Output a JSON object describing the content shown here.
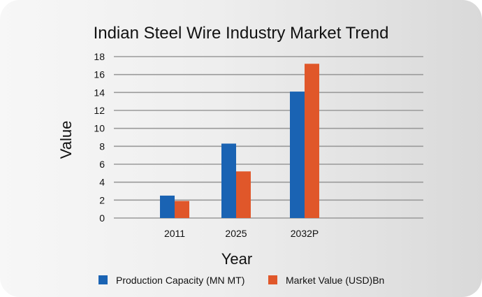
{
  "chart_data": {
    "type": "bar",
    "title": "Indian Steel Wire Industry Market Trend",
    "xlabel": "Year",
    "ylabel": "Value",
    "categories": [
      "2011",
      "2025",
      "2032P"
    ],
    "series": [
      {
        "name": "Production Capacity (MN MT)",
        "values": [
          2.5,
          8.3,
          14.1
        ],
        "color": "#1a63b3"
      },
      {
        "name": "Market Value (USD)Bn",
        "values": [
          1.9,
          5.2,
          17.2
        ],
        "color": "#e0572a"
      }
    ],
    "ylim": [
      0,
      18
    ],
    "yticks": [
      "0",
      "2",
      "4",
      "6",
      "8",
      "10",
      "12",
      "14",
      "16",
      "18"
    ],
    "grid": true,
    "legend": "bottom"
  }
}
